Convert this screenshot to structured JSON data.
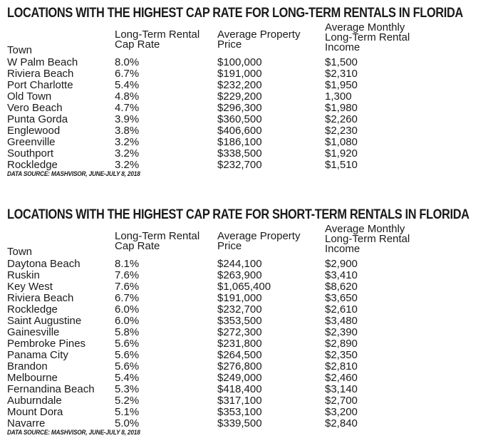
{
  "long_term": {
    "title": "LOCATIONS WITH THE HIGHEST CAP RATE FOR LONG-TERM RENTALS IN FLORIDA",
    "headers": [
      "Town",
      "Long-Term Rental Cap Rate",
      "Average Property Price",
      "Average Monthly Long-Term Rental Income"
    ],
    "rows": [
      [
        "W Palm Beach",
        "8.0%",
        "$100,000",
        "$1,500"
      ],
      [
        "Riviera Beach",
        "6.7%",
        "$191,000",
        "$2,310"
      ],
      [
        "Port Charlotte",
        "5.4%",
        "$232,200",
        "$1,950"
      ],
      [
        "Old Town",
        "4.8%",
        "$229,200",
        "1,300"
      ],
      [
        "Vero Beach",
        "4.7%",
        "$296,300",
        "$1,980"
      ],
      [
        "Punta Gorda",
        "3.9%",
        "$360,500",
        "$2,260"
      ],
      [
        "Englewood",
        "3.8%",
        "$406,600",
        "$2,230"
      ],
      [
        "Greenville",
        "3.2%",
        "$186,100",
        "$1,080"
      ],
      [
        "Southport",
        "3.2%",
        "$338,500",
        "$1,920"
      ],
      [
        "Rockledge",
        "3.2%",
        "$232,700",
        "$1,510"
      ]
    ],
    "source": "DATA SOURCE: MASHVISOR, JUNE-JULY 8, 2018"
  },
  "short_term": {
    "title": "LOCATIONS WITH THE HIGHEST CAP RATE FOR SHORT-TERM RENTALS IN FLORIDA",
    "headers": [
      "Town",
      "Long-Term Rental Cap Rate",
      "Average Property Price",
      "Average Monthly Long-Term Rental Income"
    ],
    "rows": [
      [
        "Daytona Beach",
        "8.1%",
        "$244,100",
        "$2,900"
      ],
      [
        "Ruskin",
        "7.6%",
        "$263,900",
        "$3,410"
      ],
      [
        "Key West",
        "7.6%",
        "$1,065,400",
        "$8,620"
      ],
      [
        "Riviera Beach",
        "6.7%",
        "$191,000",
        "$3,650"
      ],
      [
        "Rockledge",
        "6.0%",
        "$232,700",
        "$2,610"
      ],
      [
        "Saint Augustine",
        "6.0%",
        "$353,500",
        "$3,480"
      ],
      [
        "Gainesville",
        "5.8%",
        "$272,300",
        "$2,390"
      ],
      [
        "Pembroke Pines",
        "5.6%",
        "$231,800",
        "$2,890"
      ],
      [
        "Panama City",
        "5.6%",
        "$264,500",
        "$2,350"
      ],
      [
        "Brandon",
        "5.6%",
        "$276,800",
        "$2,810"
      ],
      [
        "Melbourne",
        "5.4%",
        "$249,000",
        "$2,460"
      ],
      [
        "Fernandina Beach",
        "5.3%",
        "$418,400",
        "$3,140"
      ],
      [
        "Auburndale",
        "5.2%",
        "$317,100",
        "$2,700"
      ],
      [
        "Mount Dora",
        "5.1%",
        "$353,100",
        "$3,200"
      ],
      [
        "Navarre",
        "5.0%",
        "$339,500",
        "$2,840"
      ]
    ],
    "source": "DATA SOURCE: MASHVISOR, JUNE-JULY 8, 2018"
  }
}
